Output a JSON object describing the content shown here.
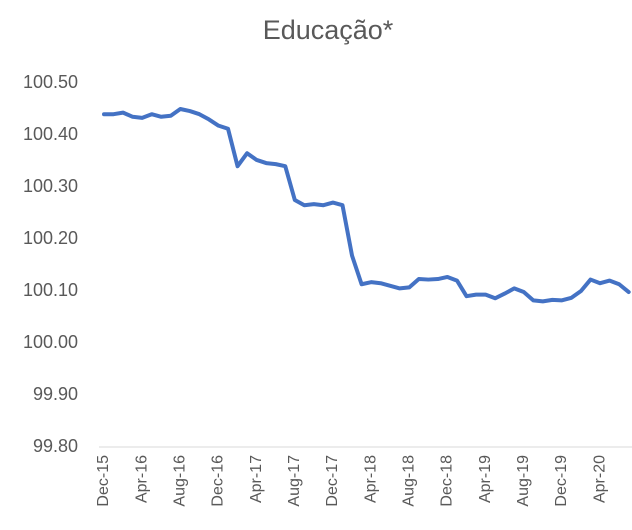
{
  "chart_data": {
    "type": "line",
    "title": "Educação*",
    "categories": [
      "Dec-15",
      null,
      null,
      null,
      "Apr-16",
      null,
      null,
      null,
      "Aug-16",
      null,
      null,
      null,
      "Dec-16",
      null,
      null,
      null,
      "Apr-17",
      null,
      null,
      null,
      "Aug-17",
      null,
      null,
      null,
      "Dec-17",
      null,
      null,
      null,
      "Apr-18",
      null,
      null,
      null,
      "Aug-18",
      null,
      null,
      null,
      "Dec-18",
      null,
      null,
      null,
      "Apr-19",
      null,
      null,
      null,
      "Aug-19",
      null,
      null,
      null,
      "Dec-19",
      null,
      null,
      null,
      "Apr-20",
      null,
      null,
      null
    ],
    "series": [
      {
        "name": "Educação*",
        "color": "#4472c4",
        "values": [
          100.44,
          100.44,
          100.443,
          100.435,
          100.433,
          100.44,
          100.435,
          100.437,
          100.45,
          100.446,
          100.44,
          100.43,
          100.418,
          100.412,
          100.34,
          100.365,
          100.352,
          100.346,
          100.344,
          100.34,
          100.275,
          100.265,
          100.267,
          100.265,
          100.27,
          100.265,
          100.168,
          100.113,
          100.117,
          100.115,
          100.11,
          100.105,
          100.107,
          100.123,
          100.122,
          100.123,
          100.127,
          100.12,
          100.09,
          100.093,
          100.093,
          100.086,
          100.095,
          100.105,
          100.098,
          100.082,
          100.08,
          100.083,
          100.082,
          100.087,
          100.1,
          100.122,
          100.115,
          100.12,
          100.113,
          100.098
        ]
      }
    ],
    "ylim": [
      99.8,
      100.5
    ],
    "yticks": [
      {
        "value": 99.8,
        "label": "99.80"
      },
      {
        "value": 99.9,
        "label": "99.90"
      },
      {
        "value": 100.0,
        "label": "100.00"
      },
      {
        "value": 100.1,
        "label": "100.10"
      },
      {
        "value": 100.2,
        "label": "100.20"
      },
      {
        "value": 100.3,
        "label": "100.30"
      },
      {
        "value": 100.4,
        "label": "100.40"
      },
      {
        "value": 100.5,
        "label": "100.50"
      }
    ],
    "grid": false
  }
}
